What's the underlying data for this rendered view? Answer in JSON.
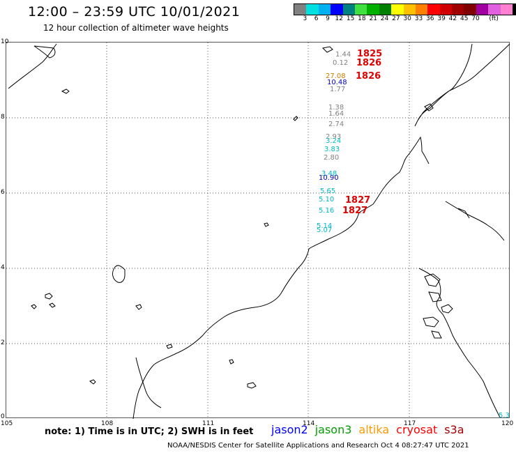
{
  "header": {
    "title": "12:00 – 23:59 UTC 10/01/2021",
    "subtitle": "12 hour collection of altimeter wave heights"
  },
  "legend": {
    "colors": [
      "#808080",
      "#00e0e0",
      "#00b0f0",
      "#0000ff",
      "#008080",
      "#40e040",
      "#00b000",
      "#008000",
      "#ffff00",
      "#ffc000",
      "#ff8000",
      "#ff0000",
      "#d00000",
      "#a00000",
      "#800000",
      "#a000a0",
      "#e060e0",
      "#ff80d0",
      "#000000"
    ],
    "labels": [
      "3",
      "6",
      "9",
      "12",
      "15",
      "18",
      "21",
      "24",
      "27",
      "30",
      "33",
      "36",
      "39",
      "42",
      "45",
      "70",
      "(ft)"
    ]
  },
  "axes": {
    "x_ticks": [
      "105",
      "108",
      "111",
      "114",
      "117",
      "120"
    ],
    "y_ticks": [
      "10",
      "8",
      "6",
      "4",
      "2",
      "0"
    ]
  },
  "wave_heights": [
    {
      "value": "1.44",
      "color": "#808080"
    },
    {
      "value": "0.12",
      "color": "#808080"
    },
    {
      "value": "27.08",
      "color": "#d08000"
    },
    {
      "value": "10.48",
      "color": "#0000c0"
    },
    {
      "value": "1.77",
      "color": "#808080"
    },
    {
      "value": "1.38",
      "color": "#808080"
    },
    {
      "value": "1.64",
      "color": "#808080"
    },
    {
      "value": "2.74",
      "color": "#808080"
    },
    {
      "value": "2.93",
      "color": "#808080"
    },
    {
      "value": "3.24",
      "color": "#00b8c8"
    },
    {
      "value": "3.83",
      "color": "#00b8c8"
    },
    {
      "value": "2.80",
      "color": "#808080"
    },
    {
      "value": "3.48",
      "color": "#00b8c8"
    },
    {
      "value": "10.90",
      "color": "#0000c0"
    },
    {
      "value": "5.65",
      "color": "#00b8c8"
    },
    {
      "value": "5.10",
      "color": "#00b8c8"
    },
    {
      "value": "5.16",
      "color": "#00b8c8"
    },
    {
      "value": "5.14",
      "color": "#00b8c8"
    },
    {
      "value": "5.07",
      "color": "#00b8c8"
    },
    {
      "value": "5.3",
      "color": "#00b8c8"
    }
  ],
  "pass_times": [
    "1825",
    "1826",
    "1826",
    "1827",
    "1827"
  ],
  "footer": {
    "note": "note:  1) Time is in UTC;  2) SWH is in feet",
    "missions": [
      {
        "name": "jason2",
        "color": "#0000ff"
      },
      {
        "name": "jason3",
        "color": "#00a000"
      },
      {
        "name": "altika",
        "color": "#ff9900"
      },
      {
        "name": "cryosat",
        "color": "#ff0000"
      },
      {
        "name": "s3a",
        "color": "#a00000"
      }
    ],
    "credit": "NOAA/NESDIS Center for Satellite Applications and Research    Oct  4 08:27:47 UTC 2021"
  }
}
